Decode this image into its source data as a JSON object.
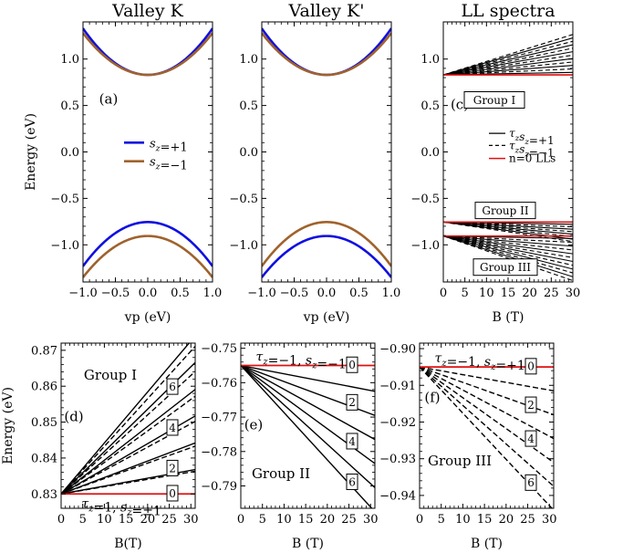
{
  "chart_data": [
    {
      "id": "a",
      "type": "line",
      "title": "Valley K",
      "panel_label": "(a)",
      "xlabel": "vp (eV)",
      "ylabel": "Energy (eV)",
      "xlim": [
        -1.0,
        1.0
      ],
      "ylim": [
        -1.4,
        1.4
      ],
      "xticks": [
        -1.0,
        -0.5,
        0.0,
        0.5,
        1.0
      ],
      "xtick_labels": [
        "−1.0",
        "−0.5",
        "0.0",
        "0.5",
        "1.0"
      ],
      "yticks": [
        -1.0,
        -0.5,
        0.0,
        0.5,
        1.0
      ],
      "ytick_labels": [
        "−1.0",
        "−0.5",
        "0.0",
        "0.5",
        "1.0"
      ],
      "legend_placement": "center",
      "series": [
        {
          "name": "s_z=+1",
          "color": "#1010e0",
          "band": "conduction",
          "minimum": 0.83,
          "edge_at_1": 1.33
        },
        {
          "name": "s_z=−1",
          "color": "#a0622d",
          "band": "conduction",
          "minimum": 0.83,
          "edge_at_1": 1.28
        },
        {
          "color": "#1010e0",
          "band": "valence",
          "maximum": -0.755,
          "edge_at_1": -1.23
        },
        {
          "color": "#a0622d",
          "band": "valence",
          "maximum": -0.905,
          "edge_at_1": -1.35
        }
      ]
    },
    {
      "id": "b",
      "type": "line",
      "title": "Valley K'",
      "xlabel": "vp (eV)",
      "xlim": [
        -1.0,
        1.0
      ],
      "ylim": [
        -1.4,
        1.4
      ],
      "xticks": [
        -1.0,
        -0.5,
        0.0,
        0.5,
        1.0
      ],
      "xtick_labels": [
        "−1.0",
        "−0.5",
        "0.0",
        "0.5",
        "1.0"
      ],
      "yticks": [
        -1.0,
        -0.5,
        0.0,
        0.5,
        1.0
      ],
      "ytick_labels": [
        "−1.0",
        "−0.5",
        "0.0",
        "0.5",
        "1.0"
      ],
      "series": [
        {
          "color": "#1010e0",
          "band": "conduction",
          "minimum": 0.83,
          "edge_at_1": 1.33
        },
        {
          "color": "#a0622d",
          "band": "conduction",
          "minimum": 0.83,
          "edge_at_1": 1.28
        },
        {
          "color": "#1010e0",
          "band": "valence",
          "maximum": -0.905,
          "edge_at_1": -1.35
        },
        {
          "color": "#a0622d",
          "band": "valence",
          "maximum": -0.755,
          "edge_at_1": -1.23
        }
      ]
    },
    {
      "id": "c",
      "type": "line",
      "title": "LL spectra",
      "panel_label": "(c)",
      "xlabel": "B (T)",
      "xlim": [
        0,
        30
      ],
      "ylim": [
        -1.4,
        1.4
      ],
      "xticks": [
        0,
        5,
        10,
        15,
        20,
        25,
        30
      ],
      "xtick_labels": [
        "0",
        "5",
        "10",
        "15",
        "20",
        "25",
        "30"
      ],
      "yticks": [
        -1.0,
        -0.5,
        0.0,
        0.5,
        1.0
      ],
      "ytick_labels": [
        "−1.0",
        "−0.5",
        "0.0",
        "0.5",
        "1.0"
      ],
      "group_labels": [
        "Group I",
        "Group II",
        "Group III"
      ],
      "legend_placement": "center-right",
      "legend": [
        "τzsz=+1",
        "τzsz=−1",
        "n=0 LLs"
      ],
      "fans": [
        {
          "group": "Group I",
          "origin": 0.83,
          "slope_min": 0.0009,
          "slope_max": 0.0145,
          "lines": 12,
          "direction": "up"
        },
        {
          "group": "Group II",
          "origin": -0.755,
          "slope_min": 0.0008,
          "slope_max": 0.007,
          "lines": 8,
          "direction": "down"
        },
        {
          "group": "Group III",
          "origin": -0.905,
          "slope_min": 0.0009,
          "slope_max": 0.016,
          "lines": 12,
          "direction": "down"
        }
      ],
      "n0_levels": [
        0.83,
        -0.755,
        -0.905
      ]
    },
    {
      "id": "d",
      "type": "line",
      "panel_label": "(d)",
      "group": "Group I",
      "xlabel": "B(T)",
      "ylabel": "Energy (eV)",
      "xlim": [
        0,
        31
      ],
      "ylim": [
        0.826,
        0.872
      ],
      "xticks": [
        0,
        5,
        10,
        15,
        20,
        25,
        30
      ],
      "xtick_labels": [
        "0",
        "5",
        "10",
        "15",
        "20",
        "25",
        "30"
      ],
      "yticks": [
        0.83,
        0.84,
        0.85,
        0.86,
        0.87
      ],
      "ytick_labels": [
        "0.83",
        "0.84",
        "0.85",
        "0.86",
        "0.87"
      ],
      "n0_label": "τz=1, sz=±1",
      "n0_level": 0.83,
      "level_labels": [
        "0",
        "2",
        "4",
        "6"
      ],
      "solid_ends_at_31": [
        0.8368,
        0.8442,
        0.8517,
        0.8591,
        0.8666,
        0.874
      ],
      "dashed_ends_at_31": [
        0.8363,
        0.8433,
        0.8502,
        0.8572,
        0.8641,
        0.8711
      ]
    },
    {
      "id": "e",
      "type": "line",
      "panel_label": "(e)",
      "group": "Group II",
      "xlabel": "B (T)",
      "xlim": [
        0,
        31
      ],
      "ylim": [
        -0.7965,
        -0.7485
      ],
      "xticks": [
        0,
        5,
        10,
        15,
        20,
        25,
        30
      ],
      "xtick_labels": [
        "0",
        "5",
        "10",
        "15",
        "20",
        "25",
        "30"
      ],
      "yticks": [
        -0.75,
        -0.76,
        -0.77,
        -0.78,
        -0.79
      ],
      "ytick_labels": [
        "−0.75",
        "−0.76",
        "−0.77",
        "−0.78",
        "−0.79"
      ],
      "n0_label": "τz=−1, sz=−1",
      "n0_level": -0.755,
      "level_labels": [
        "0",
        "2",
        "4",
        "6"
      ],
      "solid_ends_at_31": [
        -0.7625,
        -0.7695,
        -0.7765,
        -0.7835,
        -0.7905,
        -0.7975
      ]
    },
    {
      "id": "f",
      "type": "line",
      "panel_label": "(f)",
      "group": "Group III",
      "xlabel": "B (T)",
      "xlim": [
        0,
        31
      ],
      "ylim": [
        -0.9435,
        -0.8985
      ],
      "xticks": [
        0,
        5,
        10,
        15,
        20,
        25,
        30
      ],
      "xtick_labels": [
        "0",
        "5",
        "10",
        "15",
        "20",
        "25",
        "30"
      ],
      "yticks": [
        -0.9,
        -0.91,
        -0.92,
        -0.93,
        -0.94
      ],
      "ytick_labels": [
        "−0.90",
        "−0.91",
        "−0.92",
        "−0.93",
        "−0.94"
      ],
      "n0_label": "τz=−1, sz=+1",
      "n0_level": -0.905,
      "level_labels": [
        "0",
        "2",
        "4",
        "6"
      ],
      "dashed_ends_at_31": [
        -0.9115,
        -0.918,
        -0.9245,
        -0.931,
        -0.9375,
        -0.944
      ]
    }
  ]
}
